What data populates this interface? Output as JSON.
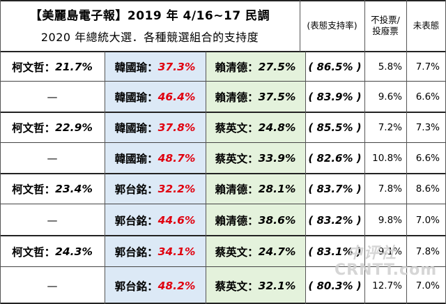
{
  "header": {
    "title_line1": "【美麗島電子報】2019 年 4/16~17 民調",
    "title_line2": "2020 年總統大選．各種競選組合的支持度",
    "col_support_rate": "(表態支持率)",
    "col_invalid": "不投票/\n投廢票",
    "col_undecided": "未表態"
  },
  "rows": [
    {
      "c1_name": "柯文哲：",
      "c1_pct": "21.7%",
      "c2_name": "韓國瑜：",
      "c2_pct": "37.3%",
      "c3_name": "賴清德：",
      "c3_pct": "27.5%",
      "rate": "( 86.5% )",
      "invalid": "5.8%",
      "undecided": "7.7%"
    },
    {
      "c1_name": "—",
      "c1_pct": "",
      "c2_name": "韓國瑜：",
      "c2_pct": "46.4%",
      "c3_name": "賴清德：",
      "c3_pct": "37.5%",
      "rate": "( 83.9% )",
      "invalid": "9.6%",
      "undecided": "6.6%"
    },
    {
      "c1_name": "柯文哲：",
      "c1_pct": "22.9%",
      "c2_name": "韓國瑜：",
      "c2_pct": "37.8%",
      "c3_name": "蔡英文：",
      "c3_pct": "24.8%",
      "rate": "( 85.5% )",
      "invalid": "7.2%",
      "undecided": "7.3%"
    },
    {
      "c1_name": "—",
      "c1_pct": "",
      "c2_name": "韓國瑜：",
      "c2_pct": "48.7%",
      "c3_name": "蔡英文：",
      "c3_pct": "33.9%",
      "rate": "( 82.6% )",
      "invalid": "10.8%",
      "undecided": "6.6%"
    },
    {
      "c1_name": "柯文哲：",
      "c1_pct": "23.4%",
      "c2_name": "郭台銘：",
      "c2_pct": "32.2%",
      "c3_name": "賴清德：",
      "c3_pct": "28.1%",
      "rate": "( 83.7% )",
      "invalid": "7.8%",
      "undecided": "8.6%"
    },
    {
      "c1_name": "—",
      "c1_pct": "",
      "c2_name": "郭台銘：",
      "c2_pct": "44.6%",
      "c3_name": "賴清德：",
      "c3_pct": "38.6%",
      "rate": "( 83.2% )",
      "invalid": "9.8%",
      "undecided": "7.0%"
    },
    {
      "c1_name": "柯文哲：",
      "c1_pct": "24.3%",
      "c2_name": "郭台銘：",
      "c2_pct": "34.1%",
      "c3_name": "蔡英文：",
      "c3_pct": "24.7%",
      "rate": "( 83.1% )",
      "invalid": "9.1%",
      "undecided": "7.8%"
    },
    {
      "c1_name": "—",
      "c1_pct": "",
      "c2_name": "郭台銘：",
      "c2_pct": "48.2%",
      "c3_name": "蔡英文：",
      "c3_pct": "32.1%",
      "rate": "( 80.3% )",
      "invalid": "12.7%",
      "undecided": "7.0%"
    }
  ],
  "watermark": {
    "line1": "中评社",
    "line2": "CRNTT.com"
  },
  "colors": {
    "highlight": "#e0000f",
    "col2_bg": "#dce9f6",
    "col3_bg": "#e4f2dc"
  }
}
